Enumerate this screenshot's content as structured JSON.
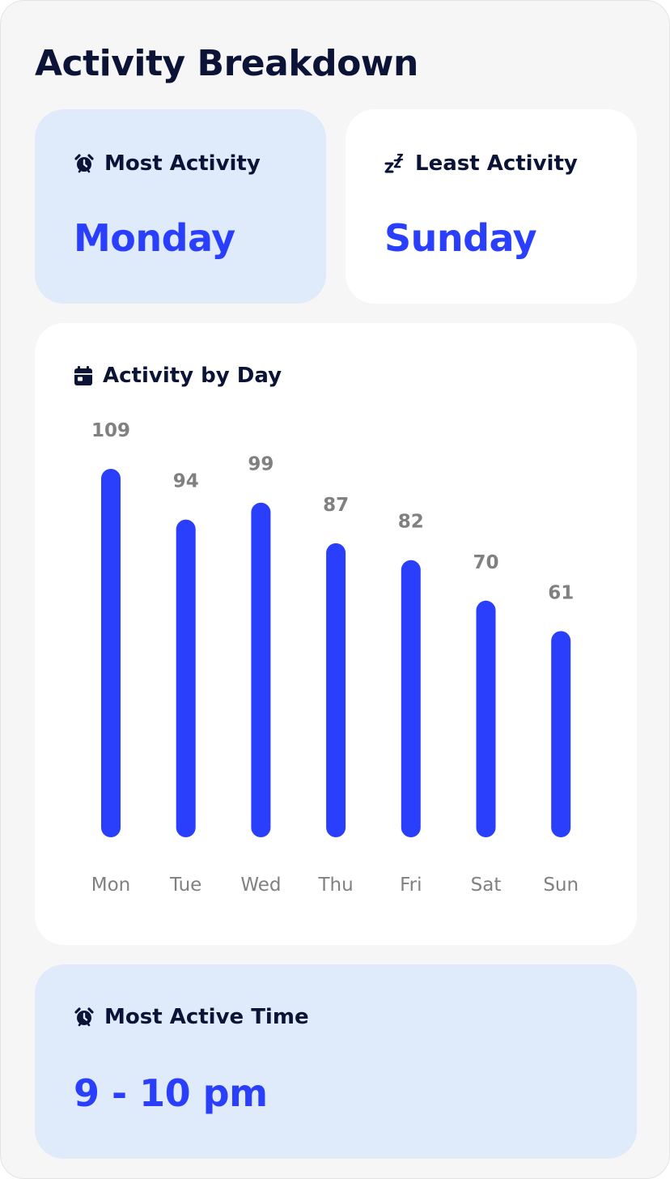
{
  "page": {
    "title": "Activity Breakdown"
  },
  "most_activity": {
    "label": "Most Activity",
    "value": "Monday",
    "icon": "alarm-clock-icon"
  },
  "least_activity": {
    "label": "Least Activity",
    "value": "Sunday",
    "icon": "zzz-icon"
  },
  "activity_by_day": {
    "label": "Activity by Day",
    "icon": "calendar-icon"
  },
  "most_active_time": {
    "label": "Most Active Time",
    "value": "9 - 10 pm",
    "icon": "alarm-clock-icon"
  },
  "colors": {
    "accent": "#2a3ffb",
    "highlight_card": "#dfeafb",
    "heading": "#0b1437",
    "muted_text": "#808080"
  },
  "chart_data": {
    "type": "bar",
    "categories": [
      "Mon",
      "Tue",
      "Wed",
      "Thu",
      "Fri",
      "Sat",
      "Sun"
    ],
    "values": [
      109,
      94,
      99,
      87,
      82,
      70,
      61
    ],
    "title": "Activity by Day",
    "xlabel": "",
    "ylabel": "",
    "ylim": [
      0,
      109
    ],
    "grid": false,
    "bar_color": "#2a3ffb"
  }
}
